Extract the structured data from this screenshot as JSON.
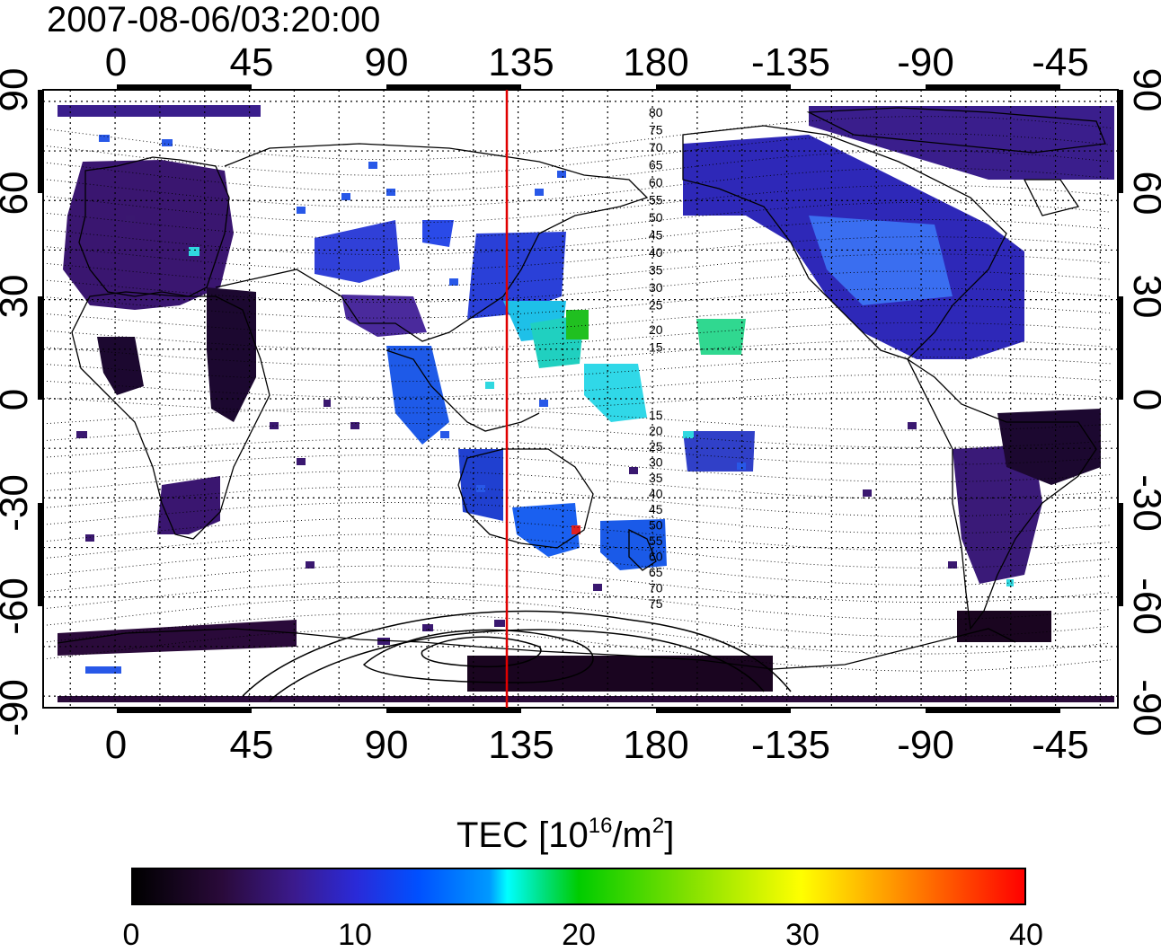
{
  "title": "2007-08-06/03:20:00",
  "map": {
    "top_lon_labels": [
      "0",
      "45",
      "90",
      "135",
      "180",
      "-135",
      "-90",
      "-45"
    ],
    "bottom_lon_labels": [
      "0",
      "45",
      "90",
      "135",
      "180",
      "-135",
      "-90",
      "-45"
    ],
    "lat_labels": [
      "90",
      "60",
      "30",
      "0",
      "-30",
      "-60",
      "-90"
    ],
    "magnetic_latitude_labels": [
      "80",
      "75",
      "70",
      "65",
      "60",
      "55",
      "50",
      "45",
      "40",
      "35",
      "30",
      "25",
      "20",
      "15",
      "15",
      "20",
      "25",
      "30",
      "35",
      "40",
      "45",
      "50",
      "55",
      "60",
      "65",
      "70",
      "75"
    ],
    "marker_longitude": 130,
    "marker_color": "#e00000",
    "coastline_color": "#000000",
    "grid": "dotted"
  },
  "colorbar": {
    "title_prefix": "TEC  [10",
    "title_exp1": "16",
    "title_mid": "/m",
    "title_exp2": "2",
    "title_suffix": "]",
    "ticks": [
      "0",
      "10",
      "20",
      "30",
      "40"
    ],
    "min": 0,
    "max": 40
  }
}
